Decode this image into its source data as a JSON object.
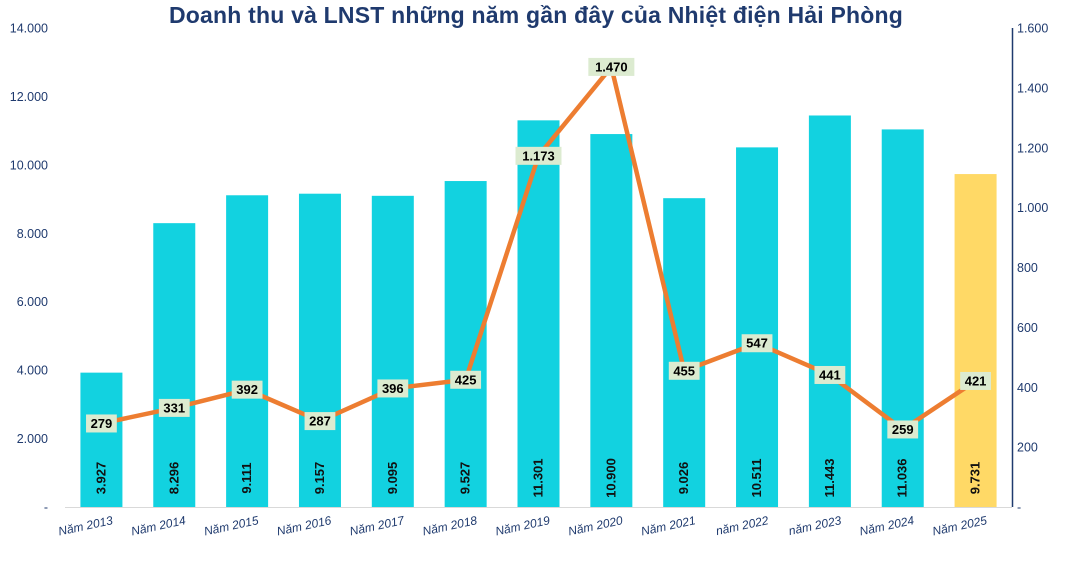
{
  "chart_data": {
    "type": "bar+line",
    "title": "Doanh thu và LNST những năm gần đây của Nhiệt điện Hải Phòng",
    "categories": [
      "Năm 2013",
      "Năm 2014",
      "Năm 2015",
      "Năm 2016",
      "Năm 2017",
      "Năm 2018",
      "Năm 2019",
      "Năm 2020",
      "Năm 2021",
      "năm 2022",
      "năm 2023",
      "Năm 2024",
      "Năm 2025"
    ],
    "series": [
      {
        "type": "bar",
        "axis": "left",
        "values": [
          3927,
          8296,
          9111,
          9157,
          9095,
          9527,
          11301,
          10900,
          9026,
          10511,
          11443,
          11036,
          9731
        ],
        "labels": [
          "3.927",
          "8.296",
          "9.111",
          "9.157",
          "9.095",
          "9.527",
          "11.301",
          "10.900",
          "9.026",
          "10.511",
          "11.443",
          "11.036",
          "9.731"
        ],
        "color": "#12d2e0",
        "highlight_color": "#ffd966",
        "highlight_index": 12
      },
      {
        "type": "line",
        "axis": "right",
        "values": [
          279,
          331,
          392,
          287,
          396,
          425,
          1173,
          1470,
          455,
          547,
          441,
          259,
          421
        ],
        "labels": [
          "279",
          "331",
          "392",
          "287",
          "396",
          "425",
          "1.173",
          "1.470",
          "455",
          "547",
          "441",
          "259",
          "421"
        ],
        "color": "#ed7d31",
        "label_bg": "#dcebd0"
      }
    ],
    "left_axis": {
      "ylim": [
        0,
        14000
      ],
      "ticks": [
        0,
        2000,
        4000,
        6000,
        8000,
        10000,
        12000,
        14000
      ],
      "tick_labels": [
        "-",
        "2.000",
        "4.000",
        "6.000",
        "8.000",
        "10.000",
        "12.000",
        "14.000"
      ]
    },
    "right_axis": {
      "ylim": [
        0,
        1600
      ],
      "ticks": [
        0,
        200,
        400,
        600,
        800,
        1000,
        1200,
        1400,
        1600
      ],
      "tick_labels": [
        "-",
        "200",
        "400",
        "600",
        "800",
        "1.000",
        "1.200",
        "1.400",
        "1.600"
      ],
      "line_color": "#1f3a6e"
    },
    "grid": false,
    "legend": "none"
  }
}
